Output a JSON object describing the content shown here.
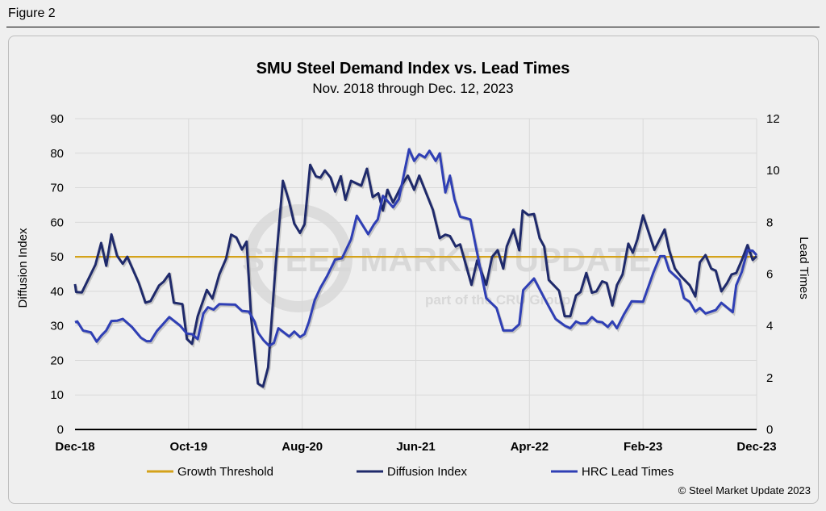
{
  "figure_label": "Figure 2",
  "copyright": "© Steel Market Update 2023",
  "watermark": {
    "line1": "STEEL MARKET UPDATE",
    "line2": "part of the CRU Group"
  },
  "colors": {
    "growth": "#d4a21a",
    "diffusion": "#1f2a6b",
    "lead": "#2f3fb5",
    "grid": "#d9d9d9"
  },
  "chart_data": {
    "type": "line",
    "title": "SMU Steel Demand Index vs. Lead Times",
    "subtitle": "Nov. 2018 through Dec. 12, 2023",
    "ylabel": "Diffusion Index",
    "y2label": "Lead Times",
    "ylim": [
      0,
      90
    ],
    "y2lim": [
      0,
      12
    ],
    "yticks": [
      0,
      10,
      20,
      30,
      40,
      50,
      60,
      70,
      80,
      90
    ],
    "y2ticks": [
      0,
      2,
      4,
      6,
      8,
      10,
      12
    ],
    "xlim": [
      0,
      60
    ],
    "xticks": [
      {
        "x": 0,
        "label": "Dec-18"
      },
      {
        "x": 10,
        "label": "Oct-19"
      },
      {
        "x": 20,
        "label": "Aug-20"
      },
      {
        "x": 30,
        "label": "Jun-21"
      },
      {
        "x": 40,
        "label": "Apr-22"
      },
      {
        "x": 50,
        "label": "Feb-23"
      },
      {
        "x": 60,
        "label": "Dec-23"
      }
    ],
    "x_unit": "months since Dec-18",
    "grid": true,
    "legend_position": "bottom",
    "series": [
      {
        "name": "Growth Threshold",
        "axis": "left",
        "color": "#d4a21a",
        "x": [
          0,
          60
        ],
        "y": [
          50,
          50
        ]
      },
      {
        "name": "Diffusion Index",
        "axis": "left",
        "color": "#1f2a6b",
        "x": [
          0,
          0.1,
          0.6,
          1.8,
          2.3,
          2.75,
          3.2,
          3.7,
          4.2,
          4.6,
          5.6,
          6.2,
          6.65,
          7.4,
          7.8,
          8.3,
          8.7,
          9.45,
          9.85,
          10.3,
          10.8,
          11.6,
          12.1,
          12.7,
          13.3,
          13.75,
          14.2,
          14.7,
          15.1,
          15.5,
          16.1,
          16.55,
          17,
          17.65,
          18.3,
          18.85,
          19.3,
          19.8,
          20.2,
          20.7,
          21.2,
          21.6,
          22,
          22.5,
          22.9,
          23.4,
          23.8,
          24.3,
          25.2,
          25.7,
          26.2,
          26.7,
          27.1,
          27.5,
          28,
          28.8,
          29.3,
          29.85,
          30.3,
          31.5,
          32.1,
          32.6,
          33,
          33.5,
          33.9,
          34.9,
          35.4,
          36.2,
          36.7,
          37.2,
          37.7,
          38,
          38.6,
          39.1,
          39.4,
          39.9,
          40.4,
          40.9,
          41.3,
          41.7,
          42.6,
          43.1,
          43.6,
          44.1,
          44.5,
          45,
          45.5,
          45.9,
          46.4,
          46.8,
          47.3,
          47.7,
          48.2,
          48.7,
          49.1,
          49.5,
          50,
          51,
          51.4,
          51.9,
          52.3,
          52.8,
          53.3,
          54.1,
          54.6,
          55,
          55.5,
          56,
          56.4,
          56.9,
          57.4,
          57.8,
          58.2,
          58.7,
          59.2,
          59.65,
          60
        ],
        "y": [
          42.1,
          39.8,
          39.7,
          47.7,
          54,
          47.4,
          56.5,
          50.3,
          48,
          50,
          42.5,
          36.7,
          37.2,
          41.7,
          42.8,
          45.1,
          36.7,
          36.3,
          26.2,
          24.8,
          32.8,
          40.4,
          37.9,
          44.9,
          49.5,
          56.4,
          55.6,
          52.1,
          54.4,
          32.5,
          13.3,
          12.4,
          18,
          47.2,
          72,
          65.9,
          59.6,
          56.9,
          59.4,
          76.6,
          73.3,
          72.9,
          75,
          72.9,
          68.9,
          73.3,
          66.5,
          72,
          70.6,
          75.5,
          67.3,
          68.4,
          63.4,
          69.4,
          65.7,
          71,
          73.5,
          69.4,
          73.5,
          63.6,
          55.4,
          56.4,
          56,
          53,
          53.6,
          41.9,
          48.9,
          41.9,
          49.9,
          51.9,
          46.6,
          53,
          57.9,
          51.9,
          63.4,
          62.1,
          62.4,
          55.4,
          53,
          43.3,
          40.2,
          32.8,
          32.8,
          38.8,
          39.8,
          45.3,
          39.6,
          40,
          42.9,
          42.4,
          35.9,
          41.8,
          44.9,
          53.8,
          51.2,
          55,
          62,
          52,
          54.6,
          57.9,
          51.9,
          46.6,
          44.5,
          41.8,
          38.5,
          48.4,
          50.5,
          46.6,
          46,
          40,
          42.4,
          44.9,
          45.3,
          49.1,
          53.4,
          49.1,
          50.2
        ]
      },
      {
        "name": "HRC Lead Times",
        "axis": "right",
        "color": "#2f3fb5",
        "x": [
          0,
          0.2,
          0.7,
          1.4,
          1.9,
          2.3,
          2.75,
          3.2,
          3.7,
          4.2,
          5,
          5.8,
          6.3,
          6.65,
          7.2,
          8.3,
          9.25,
          9.85,
          10.3,
          10.8,
          11.3,
          11.7,
          12.2,
          12.7,
          14.1,
          14.7,
          15.3,
          15.8,
          16.1,
          16.6,
          17.1,
          17.5,
          17.9,
          18.85,
          19.3,
          19.8,
          20.2,
          20.6,
          21.1,
          21.6,
          22.2,
          22.9,
          23.5,
          24.3,
          24.8,
          25.8,
          26.3,
          26.65,
          27.1,
          28,
          28.5,
          29.4,
          29.85,
          30.3,
          30.8,
          31.2,
          31.75,
          32.1,
          32.6,
          33,
          33.4,
          33.9,
          34.8,
          36.2,
          37.1,
          37.7,
          38.5,
          39.1,
          39.45,
          40.4,
          41.45,
          42.3,
          43.1,
          43.6,
          44.1,
          44.5,
          45,
          45.5,
          45.95,
          46.4,
          46.9,
          47.3,
          47.7,
          48.3,
          49,
          50,
          50.9,
          51.5,
          51.9,
          52.3,
          53.2,
          53.6,
          54.1,
          54.6,
          55,
          55.5,
          56.4,
          56.9,
          57.9,
          58.2,
          58.7,
          59.2,
          59.65,
          60
        ],
        "y": [
          4.14,
          4.17,
          3.82,
          3.75,
          3.39,
          3.62,
          3.82,
          4.19,
          4.2,
          4.27,
          3.96,
          3.54,
          3.41,
          3.41,
          3.8,
          4.34,
          4.01,
          3.7,
          3.68,
          3.49,
          4.48,
          4.72,
          4.63,
          4.84,
          4.82,
          4.58,
          4.55,
          4.17,
          3.75,
          3.44,
          3.23,
          3.34,
          3.91,
          3.59,
          3.78,
          3.57,
          3.68,
          4.17,
          5,
          5.47,
          5.93,
          6.56,
          6.61,
          7.34,
          8.25,
          7.54,
          7.91,
          8.11,
          9.02,
          8.58,
          8.89,
          10.82,
          10.37,
          10.63,
          10.5,
          10.76,
          10.37,
          10.66,
          9.15,
          9.8,
          8.89,
          8.22,
          8.11,
          5.07,
          4.69,
          3.82,
          3.82,
          4.06,
          5.38,
          5.83,
          4.95,
          4.27,
          4.01,
          3.91,
          4.17,
          4.09,
          4.1,
          4.34,
          4.17,
          4.14,
          3.96,
          4.17,
          3.91,
          4.43,
          4.95,
          4.93,
          6.04,
          6.69,
          6.69,
          6.14,
          5.78,
          5.07,
          4.93,
          4.55,
          4.69,
          4.48,
          4.61,
          4.89,
          4.53,
          5.57,
          6.09,
          6.92,
          6.9,
          6.73
        ]
      }
    ]
  }
}
